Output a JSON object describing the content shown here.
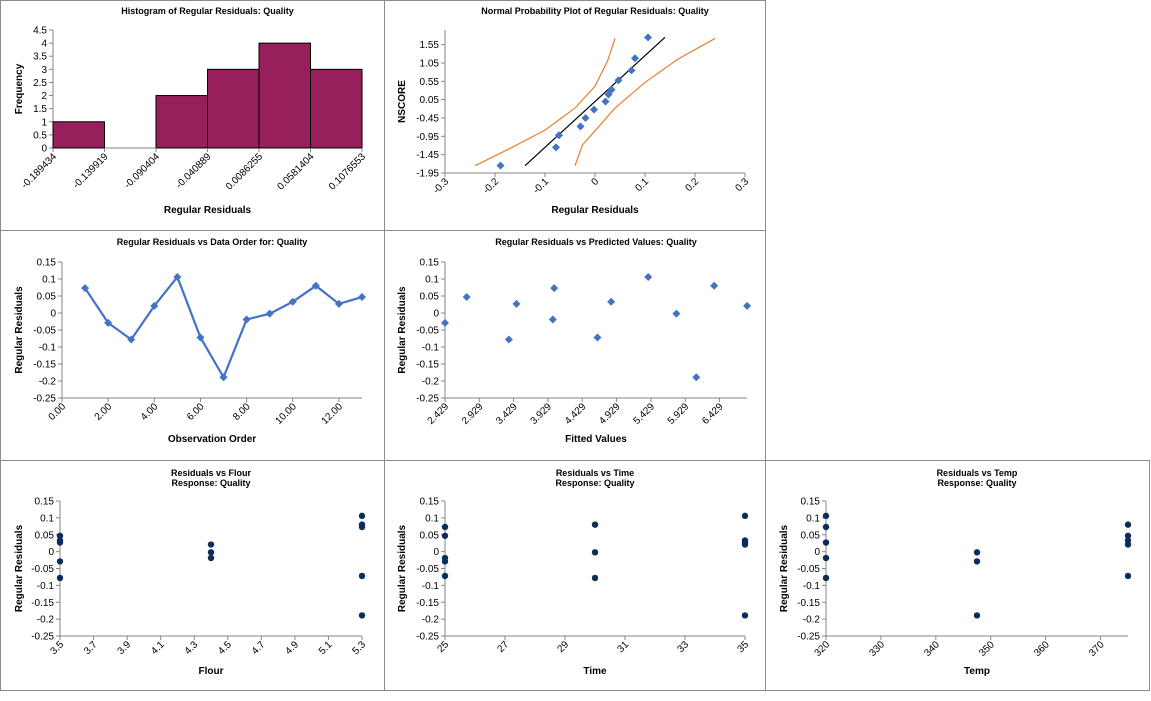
{
  "chart_data": [
    {
      "id": "hist",
      "type": "bar",
      "title": [
        "Histogram of Regular Residuals: Quality"
      ],
      "xlabel": "Regular Residuals",
      "ylabel": "Frequency",
      "bin_edges": [
        "-0.189434",
        "-0.139919",
        "-0.090404",
        "-0.040889",
        "0.0086255",
        "0.0581404",
        "0.1076553"
      ],
      "values": [
        1,
        0,
        2,
        3,
        4,
        3
      ],
      "ylim": [
        0,
        4.5
      ],
      "yticks": [
        0,
        0.5,
        1,
        1.5,
        2,
        2.5,
        3,
        3.5,
        4,
        4.5
      ],
      "bar_color": "#971f5c",
      "grid": false
    },
    {
      "id": "npp",
      "type": "scatter",
      "title": [
        "Normal Probability Plot of Regular Residuals: Quality"
      ],
      "xlabel": "Regular Residuals",
      "ylabel": "NSCORE",
      "xlim": [
        -0.3,
        0.3
      ],
      "ylim": [
        -1.95,
        1.95
      ],
      "xticks": [
        -0.3,
        -0.2,
        -0.1,
        0,
        0.1,
        0.2,
        0.3
      ],
      "yticks": [
        -1.95,
        -1.45,
        -0.95,
        -0.45,
        0.05,
        0.55,
        1.05,
        1.55
      ],
      "points": [
        [
          -0.189,
          -1.75
        ],
        [
          -0.078,
          -1.25
        ],
        [
          -0.072,
          -0.92
        ],
        [
          -0.029,
          -0.68
        ],
        [
          -0.019,
          -0.45
        ],
        [
          -0.002,
          -0.22
        ],
        [
          0.021,
          0.0
        ],
        [
          0.027,
          0.19
        ],
        [
          0.033,
          0.32
        ],
        [
          0.047,
          0.58
        ],
        [
          0.073,
          0.85
        ],
        [
          0.08,
          1.18
        ],
        [
          0.106,
          1.75
        ]
      ],
      "fit_line": [
        [
          -0.14,
          -1.75
        ],
        [
          0.14,
          1.75
        ]
      ],
      "upper_band": [
        [
          -0.24,
          -1.75
        ],
        [
          -0.17,
          -1.28
        ],
        [
          -0.1,
          -0.78
        ],
        [
          -0.04,
          -0.18
        ],
        [
          0.0,
          0.42
        ],
        [
          0.025,
          1.1
        ],
        [
          0.04,
          1.72
        ]
      ],
      "lower_band": [
        [
          -0.04,
          -1.75
        ],
        [
          -0.025,
          -1.18
        ],
        [
          0.0,
          -0.8
        ],
        [
          0.04,
          -0.18
        ],
        [
          0.1,
          0.52
        ],
        [
          0.165,
          1.15
        ],
        [
          0.24,
          1.72
        ]
      ],
      "point_color": "#4472c4",
      "line_color": "#000000",
      "band_color": "#ed7d31",
      "grid": false
    },
    {
      "id": "order",
      "type": "line",
      "title": [
        "Regular Residuals vs Data Order for: Quality"
      ],
      "xlabel": "Observation Order",
      "ylabel": "Regular Residuals",
      "xlim": [
        0,
        13
      ],
      "ylim": [
        -0.25,
        0.15
      ],
      "xticks": [
        "0.00",
        "2.00",
        "4.00",
        "6.00",
        "8.00",
        "10.00",
        "12.00"
      ],
      "yticks": [
        -0.25,
        -0.2,
        -0.15,
        -0.1,
        -0.05,
        0,
        0.05,
        0.1,
        0.15
      ],
      "points": [
        [
          1,
          0.073
        ],
        [
          2,
          -0.029
        ],
        [
          3,
          -0.078
        ],
        [
          4,
          0.021
        ],
        [
          5,
          0.106
        ],
        [
          6,
          -0.072
        ],
        [
          7,
          -0.189
        ],
        [
          8,
          -0.019
        ],
        [
          9,
          -0.002
        ],
        [
          10,
          0.033
        ],
        [
          11,
          0.08
        ],
        [
          12,
          0.027
        ],
        [
          13,
          0.047
        ]
      ],
      "color": "#4472c4",
      "grid": false
    },
    {
      "id": "pred",
      "type": "scatter",
      "title": [
        "Regular Residuals vs Predicted Values: Quality"
      ],
      "xlabel": "Fitted Values",
      "ylabel": "Regular Residuals",
      "xlim": [
        2.429,
        6.829
      ],
      "ylim": [
        -0.25,
        0.15
      ],
      "xticks": [
        "2.429",
        "2.929",
        "3.429",
        "3.929",
        "4.429",
        "4.929",
        "5.429",
        "5.929",
        "6.429"
      ],
      "yticks": [
        -0.25,
        -0.2,
        -0.15,
        -0.1,
        -0.05,
        0,
        0.05,
        0.1,
        0.15
      ],
      "points": [
        [
          2.429,
          -0.029
        ],
        [
          2.745,
          0.047
        ],
        [
          3.36,
          -0.078
        ],
        [
          3.47,
          0.027
        ],
        [
          4.02,
          0.073
        ],
        [
          4.0,
          -0.019
        ],
        [
          4.65,
          -0.072
        ],
        [
          4.85,
          0.033
        ],
        [
          5.39,
          0.106
        ],
        [
          5.8,
          -0.002
        ],
        [
          6.09,
          -0.189
        ],
        [
          6.35,
          0.08
        ],
        [
          6.83,
          0.021
        ]
      ],
      "color": "#4472c4",
      "grid": false
    },
    {
      "id": "flour",
      "type": "scatter",
      "title": [
        "Residuals vs Flour",
        "Response: Quality"
      ],
      "xlabel": "Flour",
      "ylabel": "Regular Residuals",
      "xlim": [
        3.5,
        5.3
      ],
      "ylim": [
        -0.25,
        0.15
      ],
      "xticks": [
        "3.5",
        "3.7",
        "3.9",
        "4.1",
        "4.3",
        "4.5",
        "4.7",
        "4.9",
        "5.1",
        "5.3"
      ],
      "yticks": [
        -0.25,
        -0.2,
        -0.15,
        -0.1,
        -0.05,
        0,
        0.05,
        0.1,
        0.15
      ],
      "points": [
        [
          3.5,
          0.047
        ],
        [
          3.5,
          0.033
        ],
        [
          3.5,
          0.027
        ],
        [
          3.5,
          -0.029
        ],
        [
          3.5,
          -0.078
        ],
        [
          4.4,
          0.021
        ],
        [
          4.4,
          -0.002
        ],
        [
          4.4,
          -0.019
        ],
        [
          5.3,
          0.106
        ],
        [
          5.3,
          0.08
        ],
        [
          5.3,
          0.073
        ],
        [
          5.3,
          -0.072
        ],
        [
          5.3,
          -0.189
        ]
      ],
      "color": "#0b2d5a",
      "grid": false
    },
    {
      "id": "time",
      "type": "scatter",
      "title": [
        "Residuals vs Time",
        "Response: Quality"
      ],
      "xlabel": "Time",
      "ylabel": "Regular Residuals",
      "xlim": [
        25,
        35
      ],
      "ylim": [
        -0.25,
        0.15
      ],
      "xticks": [
        "25",
        "27",
        "29",
        "31",
        "33",
        "35"
      ],
      "yticks": [
        -0.25,
        -0.2,
        -0.15,
        -0.1,
        -0.05,
        0,
        0.05,
        0.1,
        0.15
      ],
      "points": [
        [
          25,
          0.073
        ],
        [
          25,
          0.047
        ],
        [
          25,
          -0.019
        ],
        [
          25,
          -0.029
        ],
        [
          25,
          -0.072
        ],
        [
          30,
          0.08
        ],
        [
          30,
          -0.002
        ],
        [
          30,
          -0.078
        ],
        [
          35,
          0.106
        ],
        [
          35,
          0.033
        ],
        [
          35,
          0.027
        ],
        [
          35,
          0.021
        ],
        [
          35,
          -0.189
        ]
      ],
      "color": "#0b2d5a",
      "grid": false
    },
    {
      "id": "temp",
      "type": "scatter",
      "title": [
        "Residuals vs Temp",
        "Response: Quality"
      ],
      "xlabel": "Temp",
      "ylabel": "Regular Residuals",
      "xlim": [
        320,
        375
      ],
      "ylim": [
        -0.25,
        0.15
      ],
      "xticks": [
        "320",
        "330",
        "340",
        "350",
        "360",
        "370"
      ],
      "yticks": [
        -0.25,
        -0.2,
        -0.15,
        -0.1,
        -0.05,
        0,
        0.05,
        0.1,
        0.15
      ],
      "points": [
        [
          320,
          0.106
        ],
        [
          320,
          0.073
        ],
        [
          320,
          0.027
        ],
        [
          320,
          -0.019
        ],
        [
          320,
          -0.078
        ],
        [
          347.5,
          -0.002
        ],
        [
          347.5,
          -0.029
        ],
        [
          347.5,
          -0.189
        ],
        [
          375,
          0.08
        ],
        [
          375,
          0.047
        ],
        [
          375,
          0.033
        ],
        [
          375,
          0.021
        ],
        [
          375,
          -0.072
        ]
      ],
      "color": "#0b2d5a",
      "grid": false
    }
  ]
}
